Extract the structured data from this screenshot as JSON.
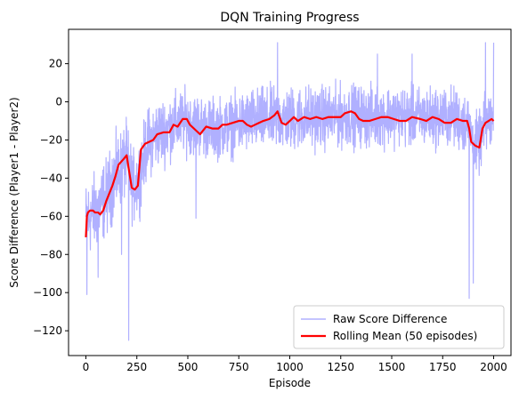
{
  "chart_data": {
    "type": "line",
    "title": "DQN Training Progress",
    "xlabel": "Episode",
    "ylabel": "Score Difference (Player1 - Player2)",
    "xlim": [
      -85,
      2085
    ],
    "ylim": [
      -133,
      38
    ],
    "xticks": [
      0,
      250,
      500,
      750,
      1000,
      1250,
      1500,
      1750,
      2000
    ],
    "yticks": [
      20,
      0,
      -20,
      -40,
      -60,
      -80,
      -100,
      -120
    ],
    "grid": false,
    "legend_position": "lower-right",
    "series": [
      {
        "name": "Raw Score Difference",
        "color": "#b0b0ff",
        "style": "noisy",
        "episodes": 2000,
        "center": [
          [
            0,
            -62
          ],
          [
            50,
            -57
          ],
          [
            100,
            -50
          ],
          [
            150,
            -38
          ],
          [
            200,
            -30
          ],
          [
            230,
            -45
          ],
          [
            260,
            -40
          ],
          [
            300,
            -22
          ],
          [
            350,
            -17
          ],
          [
            420,
            -13
          ],
          [
            475,
            -10
          ],
          [
            550,
            -12
          ],
          [
            600,
            -14
          ],
          [
            700,
            -13
          ],
          [
            800,
            -10
          ],
          [
            900,
            -9
          ],
          [
            1000,
            -9
          ],
          [
            1100,
            -8
          ],
          [
            1200,
            -8
          ],
          [
            1300,
            -7
          ],
          [
            1400,
            -8
          ],
          [
            1500,
            -7
          ],
          [
            1600,
            -8
          ],
          [
            1700,
            -8
          ],
          [
            1800,
            -8
          ],
          [
            1880,
            -12
          ],
          [
            1900,
            -22
          ],
          [
            1930,
            -22
          ],
          [
            1960,
            -11
          ],
          [
            2000,
            -10
          ]
        ],
        "amplitude": [
          [
            0,
            18
          ],
          [
            150,
            18
          ],
          [
            300,
            16
          ],
          [
            600,
            14
          ],
          [
            1000,
            15
          ],
          [
            1500,
            14
          ],
          [
            2000,
            14
          ]
        ],
        "spikes": [
          [
            5,
            -101
          ],
          [
            60,
            -92
          ],
          [
            175,
            -80
          ],
          [
            210,
            -125
          ],
          [
            540,
            -61
          ],
          [
            1880,
            -103
          ],
          [
            1900,
            -95
          ],
          [
            940,
            31
          ],
          [
            1960,
            31
          ],
          [
            1430,
            25
          ],
          [
            1600,
            25
          ],
          [
            2000,
            31
          ]
        ]
      },
      {
        "name": "Rolling Mean (50 episodes)",
        "color": "#ff0000",
        "points": [
          [
            0,
            -71
          ],
          [
            5,
            -60
          ],
          [
            10,
            -58
          ],
          [
            20,
            -57
          ],
          [
            35,
            -57
          ],
          [
            45,
            -58
          ],
          [
            60,
            -58
          ],
          [
            70,
            -59
          ],
          [
            85,
            -57
          ],
          [
            100,
            -52
          ],
          [
            115,
            -48
          ],
          [
            130,
            -44
          ],
          [
            145,
            -39
          ],
          [
            160,
            -33
          ],
          [
            185,
            -30
          ],
          [
            200,
            -28
          ],
          [
            210,
            -35
          ],
          [
            225,
            -45
          ],
          [
            240,
            -46
          ],
          [
            255,
            -44
          ],
          [
            270,
            -25
          ],
          [
            290,
            -22
          ],
          [
            310,
            -21
          ],
          [
            330,
            -20
          ],
          [
            350,
            -17
          ],
          [
            380,
            -16
          ],
          [
            410,
            -16
          ],
          [
            430,
            -12
          ],
          [
            450,
            -13
          ],
          [
            475,
            -9
          ],
          [
            495,
            -9
          ],
          [
            510,
            -12
          ],
          [
            540,
            -15
          ],
          [
            560,
            -17
          ],
          [
            590,
            -13
          ],
          [
            620,
            -14
          ],
          [
            650,
            -14
          ],
          [
            670,
            -12
          ],
          [
            690,
            -12
          ],
          [
            720,
            -11
          ],
          [
            750,
            -10
          ],
          [
            770,
            -10
          ],
          [
            790,
            -12
          ],
          [
            810,
            -13
          ],
          [
            830,
            -12
          ],
          [
            850,
            -11
          ],
          [
            870,
            -10
          ],
          [
            900,
            -9
          ],
          [
            925,
            -7
          ],
          [
            940,
            -5
          ],
          [
            960,
            -11
          ],
          [
            980,
            -12
          ],
          [
            1000,
            -10
          ],
          [
            1020,
            -8
          ],
          [
            1040,
            -10
          ],
          [
            1070,
            -8
          ],
          [
            1100,
            -9
          ],
          [
            1130,
            -8
          ],
          [
            1160,
            -9
          ],
          [
            1190,
            -8
          ],
          [
            1220,
            -8
          ],
          [
            1250,
            -8
          ],
          [
            1270,
            -6
          ],
          [
            1300,
            -5
          ],
          [
            1320,
            -6
          ],
          [
            1340,
            -9
          ],
          [
            1360,
            -10
          ],
          [
            1390,
            -10
          ],
          [
            1420,
            -9
          ],
          [
            1450,
            -8
          ],
          [
            1480,
            -8
          ],
          [
            1510,
            -9
          ],
          [
            1540,
            -10
          ],
          [
            1570,
            -10
          ],
          [
            1600,
            -8
          ],
          [
            1640,
            -9
          ],
          [
            1670,
            -10
          ],
          [
            1700,
            -8
          ],
          [
            1730,
            -9
          ],
          [
            1760,
            -11
          ],
          [
            1790,
            -11
          ],
          [
            1820,
            -9
          ],
          [
            1850,
            -10
          ],
          [
            1870,
            -10
          ],
          [
            1880,
            -14
          ],
          [
            1890,
            -21
          ],
          [
            1910,
            -23
          ],
          [
            1930,
            -24
          ],
          [
            1945,
            -14
          ],
          [
            1960,
            -11
          ],
          [
            1975,
            -10
          ],
          [
            1990,
            -9
          ],
          [
            2000,
            -10
          ]
        ]
      }
    ]
  }
}
